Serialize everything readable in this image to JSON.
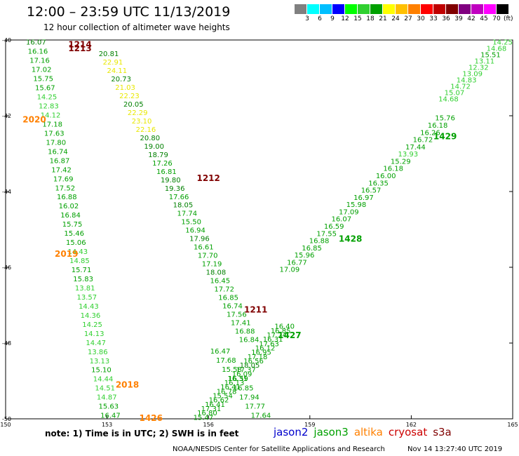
{
  "title": "12:00 – 23:59 UTC 11/13/2019",
  "subtitle": "12 hour collection of altimeter wave heights",
  "colorbar": {
    "colors": [
      "#808080",
      "#00ffff",
      "#00bfff",
      "#0000ff",
      "#00ff00",
      "#30d030",
      "#00a000",
      "#ffff00",
      "#ffc000",
      "#ff8000",
      "#ff0000",
      "#c00000",
      "#800000",
      "#800080",
      "#c000c0",
      "#ff00ff",
      "#000000"
    ],
    "labels": [
      "3",
      "6",
      "9",
      "12",
      "15",
      "18",
      "21",
      "24",
      "27",
      "30",
      "33",
      "36",
      "39",
      "42",
      "45",
      "70"
    ],
    "unit": "(ft)"
  },
  "map": {
    "lon_range": [
      150,
      165
    ],
    "lat_range": [
      -50,
      -40
    ],
    "lon_ticks": [
      "150",
      "153",
      "156",
      "159",
      "162",
      "165"
    ],
    "lat_ticks": [
      "-40",
      "-42",
      "-44",
      "-46",
      "-48",
      "-50"
    ],
    "passes": [
      {
        "label": "1214",
        "lon": 152.2,
        "lat": -40.12,
        "color": "#800000"
      },
      {
        "label": "1213",
        "lon": 152.2,
        "lat": -40.22,
        "color": "#800000"
      },
      {
        "label": "2020",
        "lon": 150.85,
        "lat": -42.1,
        "color": "#ff8000"
      },
      {
        "label": "1212",
        "lon": 156.0,
        "lat": -43.65,
        "color": "#800000"
      },
      {
        "label": "2019",
        "lon": 151.8,
        "lat": -45.65,
        "color": "#ff8000"
      },
      {
        "label": "1211",
        "lon": 157.4,
        "lat": -47.12,
        "color": "#800000"
      },
      {
        "label": "1427",
        "lon": 158.4,
        "lat": -47.8,
        "color": "#00a000"
      },
      {
        "label": "2018",
        "lon": 153.6,
        "lat": -49.1,
        "color": "#ff8000"
      },
      {
        "label": "1426",
        "lon": 154.3,
        "lat": -49.98,
        "color": "#ff8000"
      },
      {
        "label": "1428",
        "lon": 160.2,
        "lat": -45.25,
        "color": "#00a000"
      },
      {
        "label": "1429",
        "lon": 163.0,
        "lat": -42.55,
        "color": "#00a000"
      }
    ],
    "tracks": [
      {
        "name": "altika-2020-west",
        "start_lon": 150.9,
        "end_lon": 153.1,
        "start_lat": -40.05,
        "end_lat": -49.9,
        "color": "#30d030",
        "values": [
          "16.07",
          "16.16",
          "17.16",
          "17.02",
          "15.75",
          "15.67",
          "14.25",
          "12.83",
          "14.12",
          "17.18",
          "17.63",
          "17.80",
          "16.74",
          "16.87",
          "17.42",
          "17.69",
          "17.52",
          "16.88",
          "16.02",
          "16.84",
          "15.75",
          "15.46",
          "15.06",
          "14.43",
          "14.85",
          "15.71",
          "15.83",
          "13.81",
          "13.57",
          "14.43",
          "14.36",
          "14.25",
          "14.13",
          "14.47",
          "13.86",
          "13.13",
          "15.10",
          "14.44",
          "14.51",
          "14.87",
          "15.63",
          "16.47"
        ],
        "colors": [
          "21",
          "18",
          "18",
          "18",
          "18",
          "18",
          "15",
          "15",
          "15",
          "18",
          "18",
          "18",
          "18",
          "18",
          "18",
          "18",
          "18",
          "18",
          "18",
          "18",
          "18",
          "18",
          "18",
          "15",
          "15",
          "18",
          "18",
          "15",
          "15",
          "15",
          "15",
          "15",
          "15",
          "15",
          "15",
          "15",
          "18",
          "15",
          "15",
          "15",
          "18",
          "18"
        ]
      },
      {
        "name": "cryosat-1213",
        "start_lon": 153.05,
        "end_lon": 157.2,
        "start_lat": -40.35,
        "end_lat": -47.9,
        "color": "#00a000",
        "values": [
          "20.81",
          "22.91",
          "24.11",
          "20.73",
          "21.03",
          "22.23",
          "20.05",
          "22.29",
          "23.10",
          "22.16",
          "20.80",
          "19.00",
          "18.79",
          "17.26",
          "16.81",
          "19.80",
          "19.36",
          "17.66",
          "18.05",
          "17.74",
          "15.50",
          "16.94",
          "17.96",
          "16.61",
          "17.70",
          "17.19",
          "18.08",
          "16.45",
          "17.72",
          "16.85",
          "16.74",
          "17.56",
          "17.41",
          "16.88",
          "16.84"
        ],
        "colors": [
          "21",
          "24",
          "24",
          "21",
          "24",
          "24",
          "21",
          "24",
          "24",
          "24",
          "21",
          "21",
          "21",
          "18",
          "18",
          "21",
          "21",
          "18",
          "21",
          "18",
          "18",
          "18",
          "21",
          "18",
          "18",
          "18",
          "21",
          "18",
          "18",
          "18",
          "18",
          "18",
          "18",
          "18",
          "18"
        ]
      },
      {
        "name": "jason3-1426",
        "start_lon": 155.85,
        "end_lon": 158.25,
        "start_lat": -49.95,
        "end_lat": -47.55,
        "color": "#00a000",
        "values": [
          "15.47",
          "16.80",
          "17.31",
          "16.41",
          "16.62",
          "15.54",
          "16.78",
          "16.41",
          "16.13",
          "16.59",
          "16.09",
          "17.37",
          "18.05",
          "16.56",
          "17.18",
          "16.95",
          "16.12",
          "17.63",
          "16.31",
          "17.24",
          "16.85",
          "16.40"
        ],
        "colors": [
          "18",
          "18",
          "18",
          "18",
          "18",
          "18",
          "18",
          "18",
          "18",
          "18",
          "18",
          "18",
          "21",
          "18",
          "18",
          "18",
          "18",
          "18",
          "18",
          "18",
          "18",
          "18"
        ]
      },
      {
        "name": "jason3-1428",
        "start_lon": 158.4,
        "end_lon": 163.0,
        "start_lat": -46.05,
        "end_lat": -42.05,
        "color": "#00a000",
        "values": [
          "17.09",
          "16.77",
          "15.96",
          "16.85",
          "16.88",
          "17.55",
          "16.59",
          "16.07",
          "17.09",
          "15.98",
          "16.97",
          "16.57",
          "16.35",
          "16.00",
          "16.18",
          "15.29",
          "13.93",
          "17.44",
          "16.72",
          "16.26",
          "16.18",
          "15.76"
        ],
        "colors": [
          "18",
          "18",
          "18",
          "18",
          "18",
          "18",
          "18",
          "18",
          "18",
          "18",
          "18",
          "18",
          "18",
          "18",
          "18",
          "18",
          "15",
          "18",
          "18",
          "18",
          "18",
          "18"
        ]
      },
      {
        "name": "jason3-1429-north",
        "start_lon": 163.1,
        "end_lon": 164.7,
        "start_lat": -41.55,
        "end_lat": -40.05,
        "color": "#30d030",
        "values": [
          "14.68",
          "15.07",
          "14.72",
          "14.83",
          "13.09",
          "12.32",
          "13.11",
          "15.51",
          "14.68",
          "14.25"
        ],
        "colors": [
          "15",
          "15",
          "15",
          "15",
          "15",
          "15",
          "15",
          "18",
          "15",
          "15"
        ]
      },
      {
        "name": "altika-2018-south",
        "start_lon": 156.35,
        "end_lon": 157.55,
        "start_lat": -48.2,
        "end_lat": -49.9,
        "color": "#00a000",
        "values": [
          "16.47",
          "17.68",
          "15.58",
          "16.31",
          "16.85",
          "17.94",
          "17.77",
          "17.64"
        ],
        "colors": [
          "18",
          "18",
          "18",
          "18",
          "18",
          "18",
          "18",
          "18"
        ]
      }
    ]
  },
  "note": "note:  1) Time is in UTC;  2) SWH is in feet",
  "legend": [
    {
      "label": "jason2",
      "color": "#0000cc"
    },
    {
      "label": "jason3",
      "color": "#00a000"
    },
    {
      "label": "altika",
      "color": "#ff8000"
    },
    {
      "label": "cryosat",
      "color": "#cc0000"
    },
    {
      "label": "s3a",
      "color": "#800000"
    }
  ],
  "credit": "NOAA/NESDIS Center for Satellite Applications and Research",
  "stamp": "Nov 14 13:27:40 UTC 2019"
}
